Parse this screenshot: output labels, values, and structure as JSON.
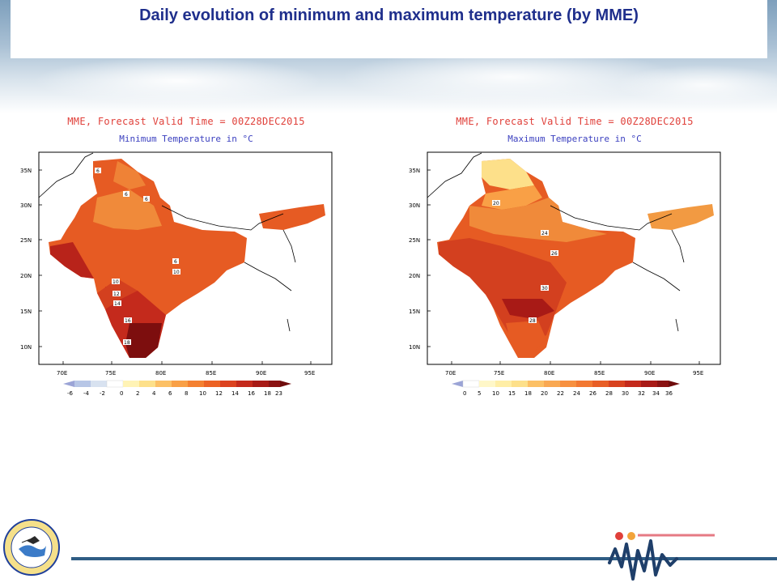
{
  "page": {
    "title": "Daily evolution of minimum and maximum temperature (by MME)"
  },
  "maps": [
    {
      "title": "MME, Forecast Valid Time = 00Z28DEC2015",
      "subtitle": "Minimum Temperature in °C",
      "lat_labels": [
        "35N",
        "30N",
        "25N",
        "20N",
        "15N",
        "10N"
      ],
      "lon_labels": [
        "70E",
        "75E",
        "80E",
        "85E",
        "90E",
        "95E"
      ],
      "colorbar_labels": [
        "-6",
        "-4",
        "-2",
        "0",
        "2",
        "4",
        "6",
        "8",
        "10",
        "12",
        "14",
        "16",
        "18",
        "23"
      ],
      "contour_labels": [
        "6",
        "6",
        "6",
        "6",
        "10",
        "10",
        "12",
        "14",
        "16",
        "18"
      ]
    },
    {
      "title": "MME, Forecast Valid Time = 00Z28DEC2015",
      "subtitle": "Maximum Temperature in °C",
      "lat_labels": [
        "35N",
        "30N",
        "25N",
        "20N",
        "15N",
        "10N"
      ],
      "lon_labels": [
        "70E",
        "75E",
        "80E",
        "85E",
        "90E",
        "95E"
      ],
      "colorbar_labels": [
        "0",
        "5",
        "10",
        "15",
        "18",
        "20",
        "22",
        "24",
        "26",
        "28",
        "30",
        "32",
        "34",
        "36"
      ],
      "contour_labels": [
        "20",
        "24",
        "26",
        "30",
        "28"
      ]
    }
  ],
  "colors": {
    "title": "#1f2f8c",
    "map_title": "#e0403a",
    "map_subtitle": "#3a3fbf",
    "footer_line": "#2f5d84",
    "brand_red": "#e0403a",
    "brand_orange": "#f2a33a"
  },
  "icons": {
    "logo": "imd-emblem-icon",
    "brand": "mfm-logo-icon"
  }
}
